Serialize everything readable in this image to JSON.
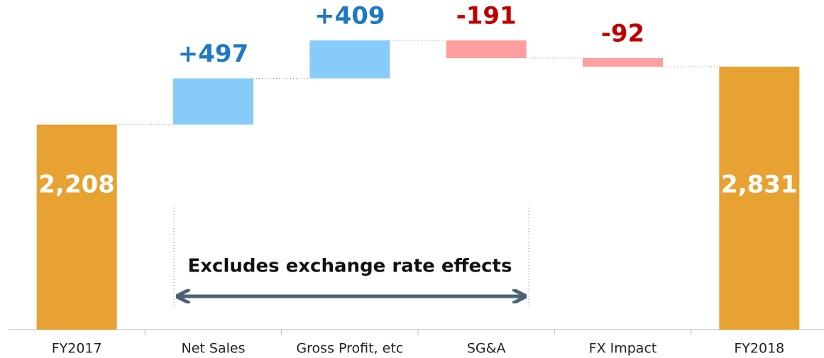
{
  "chart_data": {
    "type": "waterfall",
    "categories": [
      "FY2017",
      "Net Sales",
      "Gross Profit, etc",
      "SG&A",
      "FX Impact",
      "FY2018"
    ],
    "values": [
      2208,
      497,
      409,
      -191,
      -92,
      2831
    ],
    "value_labels": [
      "2,208",
      "+497",
      "+409",
      "-191",
      "-92",
      "2,831"
    ],
    "totals": [
      true,
      false,
      false,
      false,
      false,
      true
    ],
    "total_color": "#e8a232",
    "increase_color": "#87cbfa",
    "decrease_color": "#ff9e9e",
    "increase_label_color": "#1f78c1",
    "decrease_label_color": "#c00000",
    "annotation": "Excludes exchange rate effects"
  }
}
